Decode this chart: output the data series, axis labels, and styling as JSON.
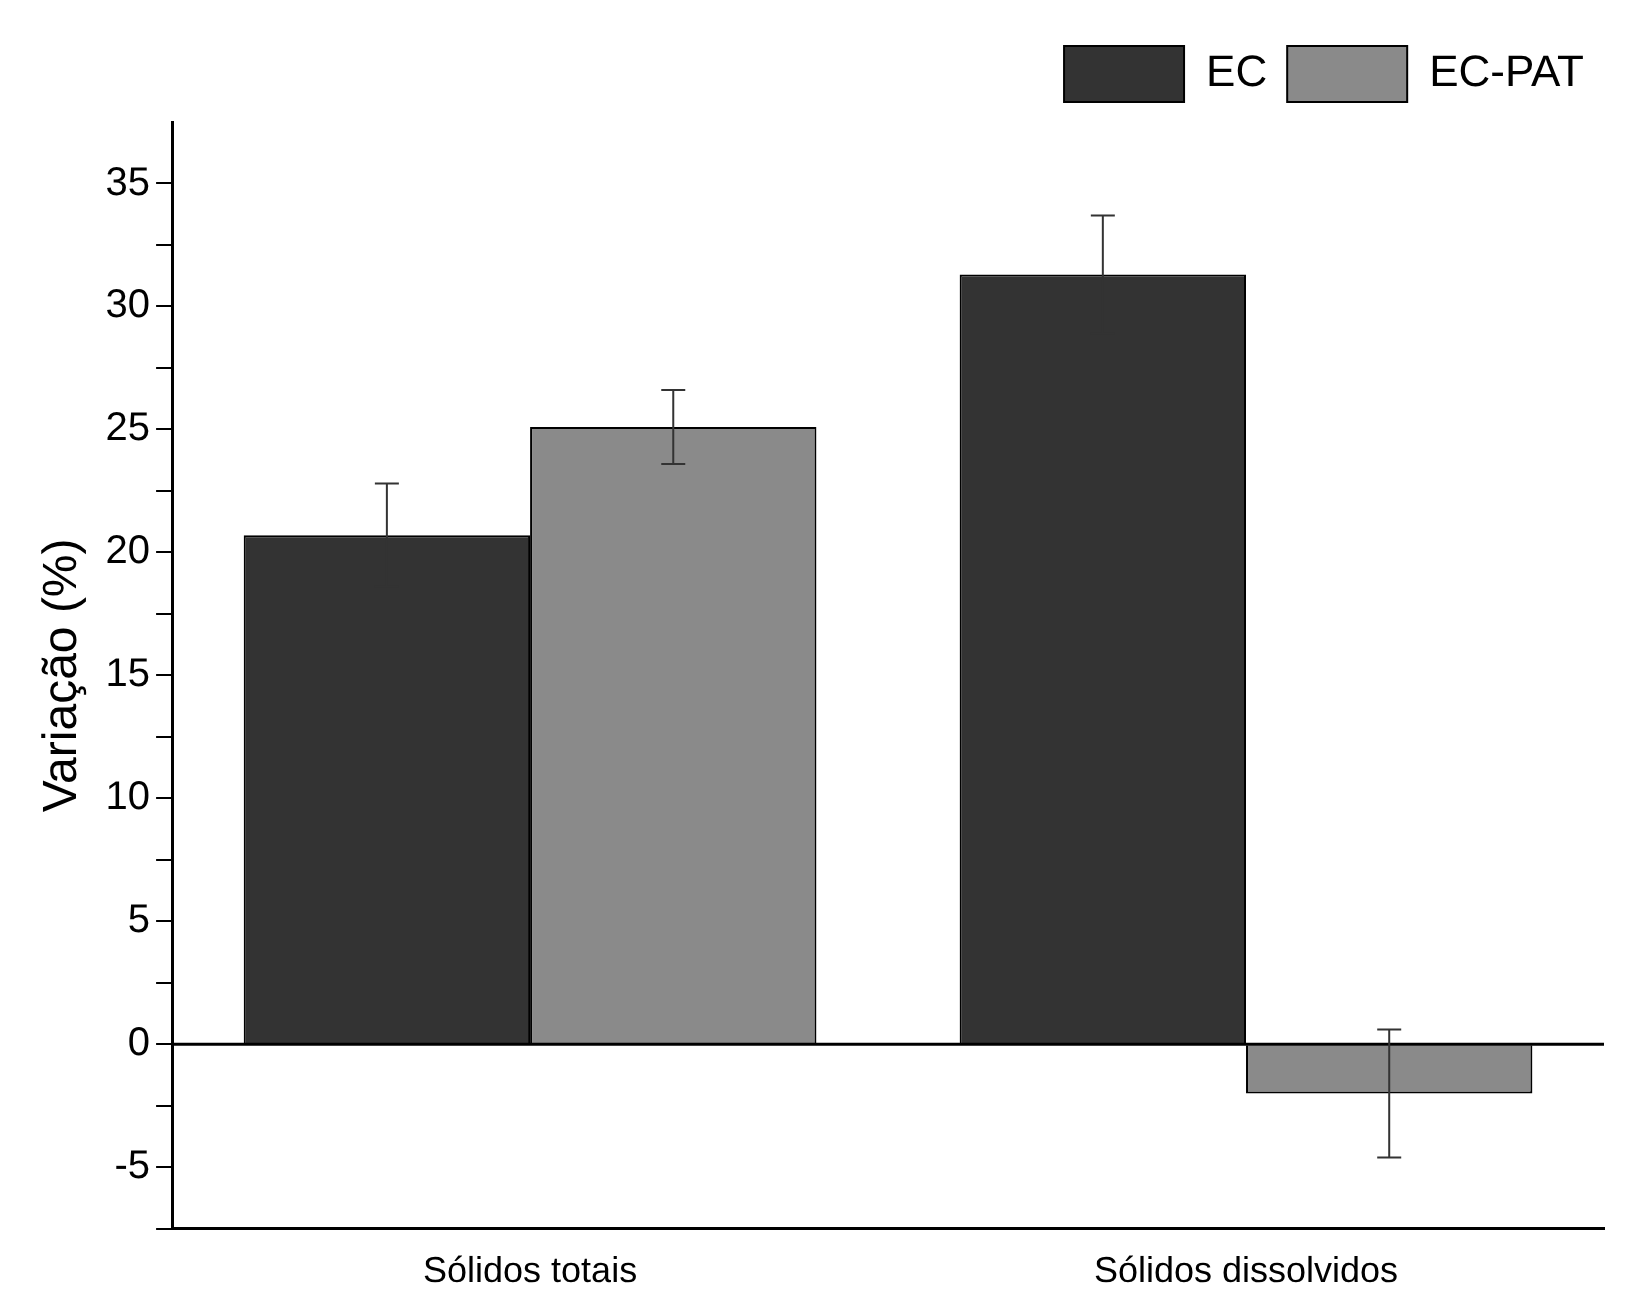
{
  "chart_data": {
    "type": "bar",
    "ylabel": "Variação (%)",
    "categories": [
      "Sólidos totais",
      "Sólidos dissolvidos"
    ],
    "series": [
      {
        "name": "EC",
        "color": "#333333",
        "values": [
          20.7,
          31.3
        ],
        "errors": [
          2.1,
          2.4
        ]
      },
      {
        "name": "EC-PAT",
        "color": "#8a8a8a",
        "values": [
          25.1,
          -2.0
        ],
        "errors": [
          1.5,
          2.6
        ]
      }
    ],
    "ylim": [
      -7.5,
      37.5
    ],
    "yticks": [
      {
        "value": -7.5,
        "label": null
      },
      -5,
      {
        "value": -2.5,
        "label": null
      },
      0,
      {
        "value": 2.5,
        "label": null
      },
      5,
      {
        "value": 7.5,
        "label": null
      },
      10,
      {
        "value": 12.5,
        "label": null
      },
      15,
      {
        "value": 17.5,
        "label": null
      },
      20,
      {
        "value": 22.5,
        "label": null
      },
      25,
      {
        "value": 27.5,
        "label": null
      },
      30,
      {
        "value": 32.5,
        "label": null
      },
      35
    ],
    "ref_lines": [
      {
        "axis": "y",
        "value": 0,
        "color": "#000000"
      }
    ],
    "grid": false,
    "legend": "top right"
  }
}
